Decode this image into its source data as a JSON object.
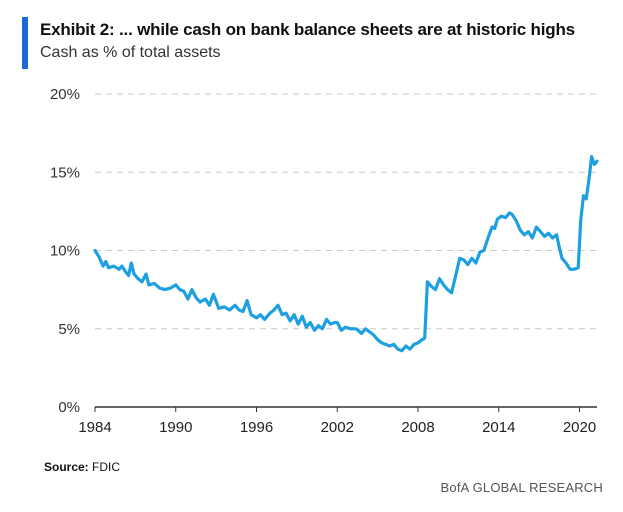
{
  "header": {
    "title": "Exhibit 2: ... while cash on bank balance sheets are at historic highs",
    "subtitle": "Cash as % of total assets"
  },
  "footer": {
    "source_label": "Source:",
    "source_value": "FDIC",
    "brand": "BofA GLOBAL RESEARCH"
  },
  "colors": {
    "accent": "#1a6ad6",
    "line": "#1ea0e0",
    "grid": "#c8c8c8",
    "axis": "#333333"
  },
  "chart_data": {
    "type": "line",
    "title": "Exhibit 2: ... while cash on bank balance sheets are at historic highs",
    "subtitle": "Cash as % of total assets",
    "xlabel": "",
    "ylabel": "",
    "xlim": [
      1984,
      2021.3
    ],
    "ylim": [
      0,
      20
    ],
    "x_ticks": [
      1984,
      1990,
      1996,
      2002,
      2008,
      2014,
      2020
    ],
    "x_tick_labels": [
      "1984",
      "1990",
      "1996",
      "2002",
      "2008",
      "2014",
      "2020"
    ],
    "y_ticks": [
      0,
      5,
      10,
      15,
      20
    ],
    "y_tick_labels": [
      "0%",
      "5%",
      "10%",
      "15%",
      "20%"
    ],
    "grid": "horizontal-dashed",
    "series": [
      {
        "values": [
          [
            1984.0,
            10.0
          ],
          [
            1984.3,
            9.6
          ],
          [
            1984.6,
            9.0
          ],
          [
            1984.8,
            9.3
          ],
          [
            1985.0,
            8.9
          ],
          [
            1985.4,
            9.0
          ],
          [
            1985.8,
            8.8
          ],
          [
            1986.0,
            9.0
          ],
          [
            1986.3,
            8.6
          ],
          [
            1986.5,
            8.4
          ],
          [
            1986.7,
            9.2
          ],
          [
            1986.9,
            8.5
          ],
          [
            1987.2,
            8.2
          ],
          [
            1987.5,
            8.0
          ],
          [
            1987.8,
            8.5
          ],
          [
            1988.0,
            7.8
          ],
          [
            1988.4,
            7.9
          ],
          [
            1988.8,
            7.6
          ],
          [
            1989.2,
            7.5
          ],
          [
            1989.6,
            7.6
          ],
          [
            1990.0,
            7.8
          ],
          [
            1990.3,
            7.5
          ],
          [
            1990.6,
            7.4
          ],
          [
            1990.9,
            6.9
          ],
          [
            1991.2,
            7.5
          ],
          [
            1991.5,
            7.0
          ],
          [
            1991.8,
            6.7
          ],
          [
            1992.2,
            6.9
          ],
          [
            1992.5,
            6.5
          ],
          [
            1992.8,
            7.2
          ],
          [
            1993.2,
            6.3
          ],
          [
            1993.6,
            6.4
          ],
          [
            1994.0,
            6.2
          ],
          [
            1994.4,
            6.5
          ],
          [
            1994.7,
            6.2
          ],
          [
            1995.0,
            6.1
          ],
          [
            1995.3,
            6.8
          ],
          [
            1995.6,
            5.9
          ],
          [
            1996.0,
            5.7
          ],
          [
            1996.3,
            5.9
          ],
          [
            1996.6,
            5.6
          ],
          [
            1997.0,
            6.0
          ],
          [
            1997.3,
            6.2
          ],
          [
            1997.6,
            6.5
          ],
          [
            1997.9,
            5.9
          ],
          [
            1998.2,
            6.0
          ],
          [
            1998.5,
            5.5
          ],
          [
            1998.8,
            5.9
          ],
          [
            1999.1,
            5.3
          ],
          [
            1999.4,
            5.8
          ],
          [
            1999.7,
            5.1
          ],
          [
            2000.0,
            5.4
          ],
          [
            2000.3,
            4.9
          ],
          [
            2000.6,
            5.2
          ],
          [
            2000.9,
            5.0
          ],
          [
            2001.2,
            5.6
          ],
          [
            2001.5,
            5.3
          ],
          [
            2001.8,
            5.4
          ],
          [
            2002.0,
            5.4
          ],
          [
            2002.3,
            4.9
          ],
          [
            2002.6,
            5.1
          ],
          [
            2003.0,
            5.0
          ],
          [
            2003.4,
            5.0
          ],
          [
            2003.8,
            4.7
          ],
          [
            2004.1,
            5.0
          ],
          [
            2004.4,
            4.8
          ],
          [
            2004.7,
            4.6
          ],
          [
            2005.0,
            4.3
          ],
          [
            2005.3,
            4.1
          ],
          [
            2005.6,
            4.0
          ],
          [
            2005.9,
            3.9
          ],
          [
            2006.2,
            4.0
          ],
          [
            2006.5,
            3.7
          ],
          [
            2006.8,
            3.6
          ],
          [
            2007.1,
            3.9
          ],
          [
            2007.4,
            3.7
          ],
          [
            2007.7,
            4.0
          ],
          [
            2008.0,
            4.1
          ],
          [
            2008.3,
            4.3
          ],
          [
            2008.5,
            4.4
          ],
          [
            2008.7,
            8.0
          ],
          [
            2009.0,
            7.7
          ],
          [
            2009.3,
            7.5
          ],
          [
            2009.6,
            8.2
          ],
          [
            2009.9,
            7.8
          ],
          [
            2010.2,
            7.5
          ],
          [
            2010.5,
            7.3
          ],
          [
            2010.8,
            8.4
          ],
          [
            2011.1,
            9.5
          ],
          [
            2011.4,
            9.4
          ],
          [
            2011.7,
            9.1
          ],
          [
            2012.0,
            9.5
          ],
          [
            2012.3,
            9.2
          ],
          [
            2012.6,
            9.9
          ],
          [
            2012.9,
            10.0
          ],
          [
            2013.2,
            10.8
          ],
          [
            2013.5,
            11.5
          ],
          [
            2013.7,
            11.4
          ],
          [
            2013.9,
            12.0
          ],
          [
            2014.2,
            12.2
          ],
          [
            2014.5,
            12.1
          ],
          [
            2014.8,
            12.4
          ],
          [
            2015.0,
            12.3
          ],
          [
            2015.3,
            11.9
          ],
          [
            2015.6,
            11.3
          ],
          [
            2015.9,
            11.0
          ],
          [
            2016.2,
            11.2
          ],
          [
            2016.5,
            10.8
          ],
          [
            2016.8,
            11.5
          ],
          [
            2017.1,
            11.2
          ],
          [
            2017.4,
            10.9
          ],
          [
            2017.7,
            11.1
          ],
          [
            2018.0,
            10.8
          ],
          [
            2018.3,
            11.0
          ],
          [
            2018.5,
            10.2
          ],
          [
            2018.7,
            9.5
          ],
          [
            2019.0,
            9.2
          ],
          [
            2019.3,
            8.8
          ],
          [
            2019.6,
            8.8
          ],
          [
            2019.9,
            8.9
          ],
          [
            2020.1,
            12.0
          ],
          [
            2020.3,
            13.5
          ],
          [
            2020.5,
            13.3
          ],
          [
            2020.7,
            14.5
          ],
          [
            2020.9,
            16.0
          ],
          [
            2021.1,
            15.5
          ],
          [
            2021.3,
            15.7
          ]
        ]
      }
    ]
  }
}
